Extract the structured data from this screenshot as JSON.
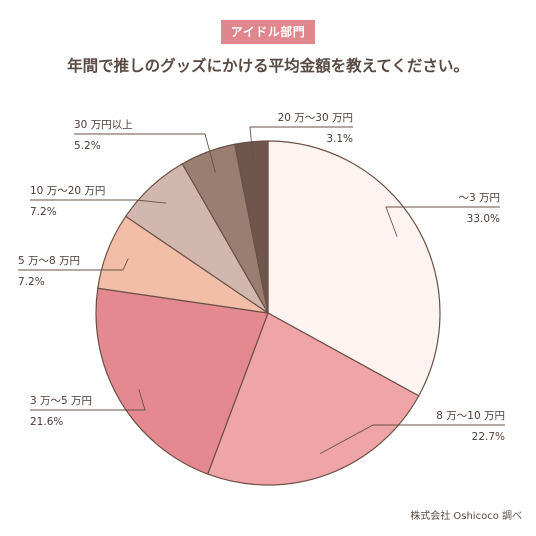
{
  "header": {
    "badge": "アイドル部門",
    "title": "年間で推しのグッズにかける平均金額を教えてください。"
  },
  "source": "株式会社 Oshicoco 調べ",
  "chart_data": {
    "type": "pie",
    "title": "年間で推しのグッズにかける平均金額を教えてください。",
    "slices": [
      {
        "label": "〜3 万円",
        "value": 33.0,
        "value_label": "33.0%",
        "color": "#fdf4f1"
      },
      {
        "label": "8 万〜10 万円",
        "value": 22.7,
        "value_label": "22.7%",
        "color": "#efa5a8"
      },
      {
        "label": "3 万〜5 万円",
        "value": 21.6,
        "value_label": "21.6%",
        "color": "#e58990"
      },
      {
        "label": "5 万〜8 万円",
        "value": 7.2,
        "value_label": "7.2%",
        "color": "#f2bea8"
      },
      {
        "label": "10 万〜20 万円",
        "value": 7.2,
        "value_label": "7.2%",
        "color": "#d1b7ad"
      },
      {
        "label": "30 万円以上",
        "value": 5.2,
        "value_label": "5.2%",
        "color": "#9a7e71"
      },
      {
        "label": "20 万〜30 万円",
        "value": 3.1,
        "value_label": "3.1%",
        "color": "#6e564c"
      }
    ]
  }
}
